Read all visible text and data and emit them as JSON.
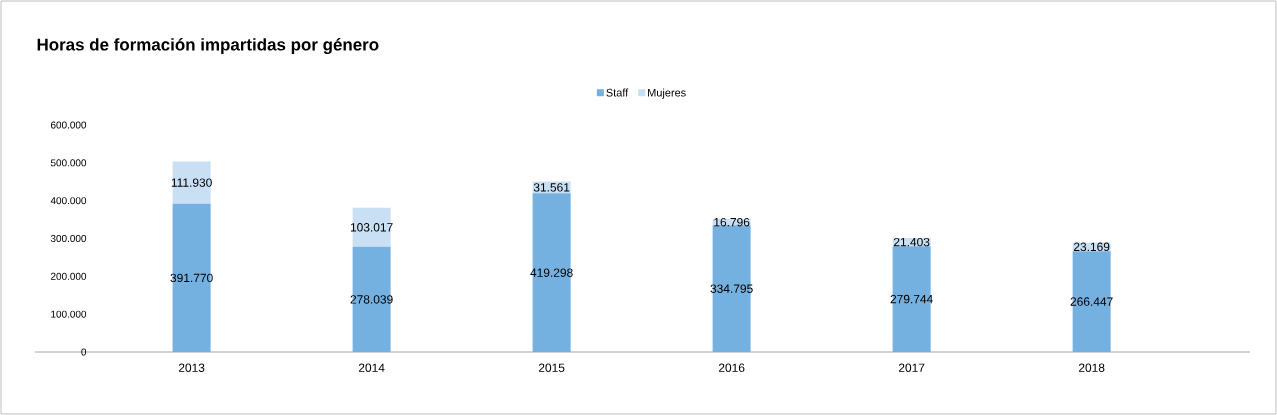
{
  "chart_data": {
    "type": "bar",
    "title": "Horas de formación impartidas por género",
    "stacked": true,
    "legend": "top",
    "categories": [
      "2013",
      "2014",
      "2015",
      "2016",
      "2017",
      "2018"
    ],
    "ylim": [
      0,
      600000
    ],
    "yticks": [
      {
        "value": 0,
        "label": "0"
      },
      {
        "value": 100000,
        "label": "100.000"
      },
      {
        "value": 200000,
        "label": "200.000"
      },
      {
        "value": 300000,
        "label": "300.000"
      },
      {
        "value": 400000,
        "label": "400.000"
      },
      {
        "value": 500000,
        "label": "500.000"
      },
      {
        "value": 600000,
        "label": "600.000"
      }
    ],
    "series": [
      {
        "name": "Staff",
        "color": "#74b1e0",
        "values": [
          391770,
          278039,
          419298,
          334795,
          279744,
          266447
        ],
        "value_labels": [
          "391.770",
          "278.039",
          "419.298",
          "334.795",
          "279.744",
          "266.447"
        ]
      },
      {
        "name": "Mujeres",
        "color": "#c9dff3",
        "values": [
          111930,
          103017,
          31561,
          16796,
          21403,
          23169
        ],
        "value_labels": [
          "111.930",
          "103.017",
          "31.561",
          "16.796",
          "21.403",
          "23.169"
        ]
      }
    ]
  }
}
